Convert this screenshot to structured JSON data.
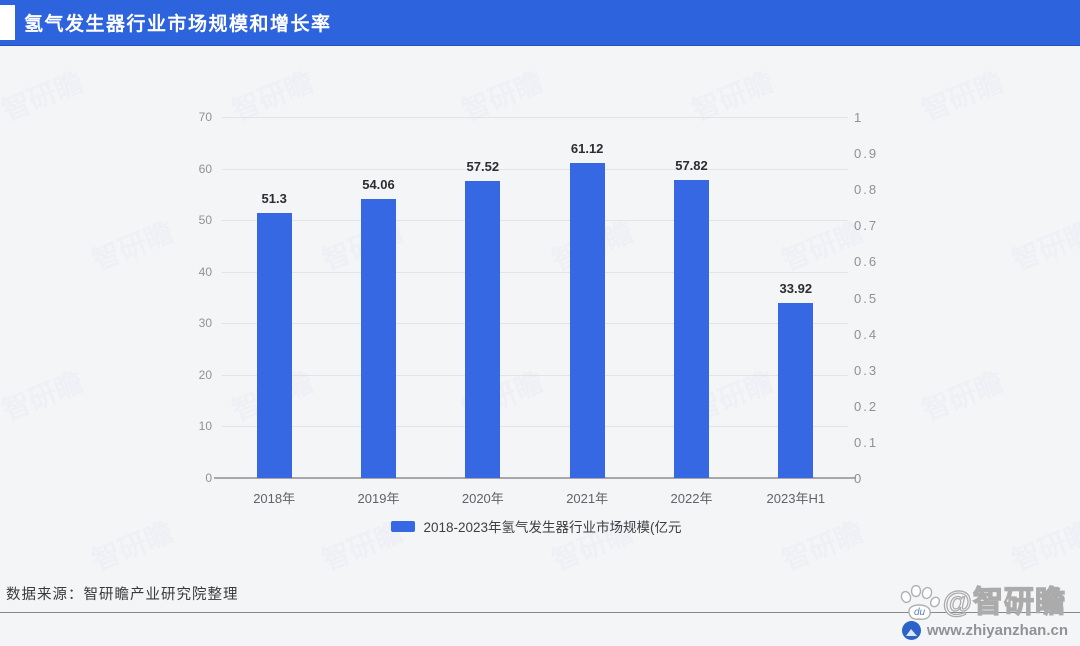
{
  "header": {
    "title": "氢气发生器行业市场规模和增长率"
  },
  "chart_data": {
    "type": "bar",
    "title": "氢气发生器行业市场规模和增长率",
    "categories": [
      "2018年",
      "2019年",
      "2020年",
      "2021年",
      "2022年",
      "2023年H1"
    ],
    "values": [
      51.3,
      54.06,
      57.52,
      61.12,
      57.82,
      33.92
    ],
    "value_labels": [
      "51.3",
      "54.06",
      "57.52",
      "61.12",
      "57.82",
      "33.92"
    ],
    "left_axis": {
      "min": 0,
      "max": 70,
      "ticks": [
        0,
        10,
        20,
        30,
        40,
        50,
        60,
        70
      ]
    },
    "right_axis": {
      "min": 0,
      "max": 1,
      "ticks_top_to_bottom": [
        "1",
        "0.9",
        "0.8",
        "0.7",
        "0.6",
        "0.5",
        "0.4",
        "0.3",
        "0.2",
        "0.1",
        "0"
      ]
    },
    "legend": [
      {
        "label": "2018-2023年氢气发生器行业市场规模(亿元",
        "color": "#3768e4"
      }
    ],
    "bar_color": "#3768e4",
    "grid": true,
    "legend_position": "bottom"
  },
  "footer": {
    "source": "数据来源：智研瞻产业研究院整理"
  },
  "brandmark": {
    "paw_label": "du",
    "name": "@智研瞻",
    "url": "www.zhiyanzhan.cn"
  },
  "background_watermark": "智研瞻",
  "colors": {
    "header_blue": "#2e63de",
    "bar_blue": "#3768e4",
    "page_background": "#f4f5f7",
    "gridline": "#e4e4e6",
    "axis_text": "#8e9196"
  }
}
